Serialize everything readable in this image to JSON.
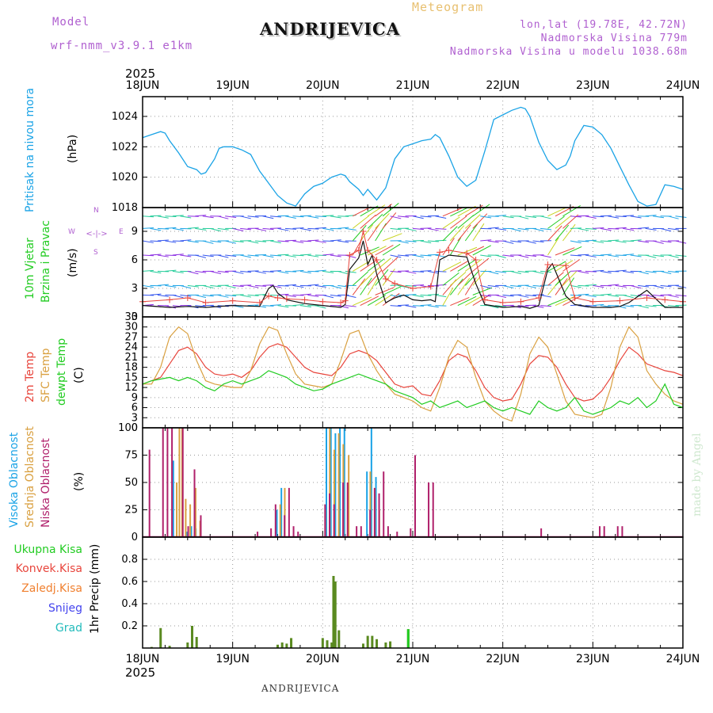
{
  "header": {
    "model_label": "Model",
    "model_name": "wrf-nmm_v3.9.1 e1km",
    "meteogram_label": "Meteogram",
    "station": "ANDRIJEVICA",
    "lonlat": "lon,lat (19.78E, 42.72N)",
    "altitude": "Nadmorska Visina 779m",
    "model_altitude": "Nadmorska Visina u modelu 1038.68m",
    "year_top": "2025",
    "year_bottom": "2025",
    "footer_station": "ANDRIJEVICA",
    "watermark": "made by Angel"
  },
  "colors": {
    "pressure": "#1aa3e6",
    "temp2m": "#e8453c",
    "sfc": "#d9a040",
    "dew": "#22cc22",
    "high_cloud": "#1aa3e6",
    "mid_cloud": "#d9a040",
    "low_cloud": "#b0206b",
    "total_precip": "#5a8a20",
    "wind_mean": "#111111",
    "wind_gust": "#e8453c"
  },
  "chart_data": [
    {
      "type": "line",
      "panel": "pressure",
      "ylabel_main": "Pritisak na nivou mora",
      "ylabel_unit": "(hPa)",
      "ylim": [
        1018,
        1025.3
      ],
      "yticks": [
        1018,
        1020,
        1022,
        1024
      ],
      "x_ticks": [
        "18JUN",
        "19JUN",
        "20JUN",
        "21JUN",
        "22JUN",
        "23JUN",
        "24JUN"
      ],
      "x_days": [
        0,
        6
      ],
      "grid": true,
      "series": [
        {
          "color_key": "pressure",
          "x": [
            0.0,
            0.1,
            0.2,
            0.25,
            0.3,
            0.4,
            0.5,
            0.6,
            0.65,
            0.7,
            0.8,
            0.85,
            0.9,
            1.0,
            1.1,
            1.2,
            1.3,
            1.4,
            1.5,
            1.6,
            1.7,
            1.8,
            1.9,
            2.0,
            2.1,
            2.2,
            2.25,
            2.3,
            2.4,
            2.45,
            2.5,
            2.6,
            2.7,
            2.8,
            2.9,
            3.0,
            3.1,
            3.2,
            3.25,
            3.3,
            3.4,
            3.5,
            3.6,
            3.7,
            3.8,
            3.9,
            4.0,
            4.1,
            4.2,
            4.25,
            4.3,
            4.4,
            4.5,
            4.6,
            4.7,
            4.75,
            4.8,
            4.9,
            5.0,
            5.1,
            5.2,
            5.3,
            5.4,
            5.5,
            5.6,
            5.7,
            5.8,
            5.9,
            6.0
          ],
          "y": [
            1022.6,
            1022.8,
            1023.0,
            1022.9,
            1022.4,
            1021.6,
            1020.7,
            1020.5,
            1020.2,
            1020.3,
            1021.2,
            1021.9,
            1022.0,
            1022.0,
            1021.8,
            1021.5,
            1020.4,
            1019.6,
            1018.8,
            1018.3,
            1018.1,
            1018.9,
            1019.4,
            1019.6,
            1020.0,
            1020.2,
            1020.1,
            1019.7,
            1019.2,
            1018.8,
            1019.2,
            1018.5,
            1019.3,
            1021.2,
            1022.0,
            1022.2,
            1022.4,
            1022.5,
            1022.8,
            1022.6,
            1021.4,
            1020.0,
            1019.4,
            1019.8,
            1021.7,
            1023.8,
            1024.1,
            1024.4,
            1024.6,
            1024.5,
            1024.0,
            1022.3,
            1021.1,
            1020.5,
            1020.8,
            1021.4,
            1022.4,
            1023.4,
            1023.3,
            1022.8,
            1021.9,
            1020.7,
            1019.5,
            1018.4,
            1018.1,
            1018.2,
            1019.5,
            1019.4,
            1019.2
          ]
        }
      ]
    },
    {
      "type": "line",
      "panel": "wind",
      "ylabel_main": "10m Vjetar",
      "ylabel_sub": "Brzina i Pravac",
      "ylabel_unit": "(m/s)",
      "compass_labels": [
        "N",
        "W",
        "E",
        "S"
      ],
      "ylim": [
        0,
        11.5
      ],
      "yticks": [
        0,
        3,
        6,
        9
      ],
      "series": [
        {
          "name": "mean",
          "color_key": "wind_mean",
          "x": [
            0.0,
            0.3,
            0.5,
            0.7,
            1.0,
            1.3,
            1.4,
            1.45,
            1.5,
            1.6,
            1.8,
            2.0,
            2.2,
            2.25,
            2.3,
            2.4,
            2.45,
            2.5,
            2.55,
            2.6,
            2.7,
            2.8,
            2.9,
            3.0,
            3.1,
            3.2,
            3.25,
            3.3,
            3.4,
            3.6,
            3.7,
            3.8,
            4.0,
            4.2,
            4.3,
            4.4,
            4.5,
            4.55,
            4.7,
            4.8,
            5.0,
            5.2,
            5.3,
            5.4,
            5.6,
            5.8,
            6.0
          ],
          "y": [
            1.2,
            1.0,
            1.1,
            1.0,
            1.2,
            1.1,
            3.0,
            3.3,
            2.5,
            1.8,
            1.4,
            1.2,
            1.0,
            1.3,
            5.0,
            6.2,
            8.0,
            5.5,
            6.5,
            4.5,
            1.5,
            2.0,
            2.3,
            1.8,
            1.7,
            1.8,
            1.6,
            6.0,
            6.5,
            6.3,
            3.5,
            1.3,
            1.0,
            1.1,
            0.9,
            1.2,
            5.0,
            5.6,
            2.2,
            1.3,
            1.0,
            1.0,
            1.1,
            1.5,
            2.8,
            1.0,
            1.0
          ]
        },
        {
          "name": "gust",
          "color_key": "wind_gust",
          "x": [
            0.0,
            0.3,
            0.5,
            0.7,
            1.0,
            1.3,
            1.4,
            1.5,
            1.6,
            1.8,
            2.0,
            2.2,
            2.25,
            2.3,
            2.4,
            2.45,
            2.5,
            2.6,
            2.7,
            2.8,
            3.0,
            3.2,
            3.3,
            3.4,
            3.6,
            3.7,
            3.8,
            4.0,
            4.2,
            4.4,
            4.5,
            4.7,
            4.8,
            5.0,
            5.3,
            5.6,
            5.8,
            6.0
          ],
          "y": [
            1.6,
            1.8,
            2.0,
            1.5,
            1.7,
            1.5,
            2.2,
            2.0,
            1.9,
            1.8,
            1.6,
            1.5,
            1.7,
            6.5,
            7.0,
            9.0,
            7.0,
            6.0,
            4.0,
            3.5,
            3.0,
            3.2,
            6.8,
            7.0,
            6.7,
            6.0,
            1.8,
            1.5,
            1.6,
            2.0,
            5.5,
            5.4,
            2.0,
            1.6,
            1.7,
            2.0,
            1.8,
            1.6
          ]
        }
      ]
    },
    {
      "type": "line",
      "panel": "temperature",
      "ylabel_a": "2m Temp",
      "ylabel_b": "SFC Temp",
      "ylabel_c": "dewpt Temp",
      "ylabel_unit": "(C)",
      "ylim": [
        0,
        33
      ],
      "yticks": [
        0,
        3,
        6,
        9,
        12,
        15,
        18,
        21,
        24,
        27,
        30,
        33
      ],
      "series": [
        {
          "name": "2m",
          "color_key": "temp2m",
          "x": [
            0.0,
            0.1,
            0.2,
            0.3,
            0.4,
            0.5,
            0.6,
            0.7,
            0.8,
            0.9,
            1.0,
            1.1,
            1.2,
            1.3,
            1.4,
            1.5,
            1.6,
            1.7,
            1.8,
            1.9,
            2.0,
            2.1,
            2.2,
            2.3,
            2.4,
            2.5,
            2.6,
            2.7,
            2.8,
            2.9,
            3.0,
            3.1,
            3.2,
            3.3,
            3.4,
            3.5,
            3.6,
            3.7,
            3.8,
            3.9,
            4.0,
            4.1,
            4.2,
            4.3,
            4.4,
            4.5,
            4.6,
            4.7,
            4.8,
            4.9,
            5.0,
            5.1,
            5.2,
            5.3,
            5.4,
            5.5,
            5.6,
            5.7,
            5.8,
            5.9,
            6.0
          ],
          "y": [
            13,
            14,
            15,
            19,
            23,
            24,
            22,
            18,
            16,
            15.5,
            16,
            15,
            17,
            21,
            24,
            25,
            24,
            21,
            18,
            16.5,
            16,
            15.5,
            18,
            22,
            23,
            22,
            20,
            16.5,
            13,
            12,
            12.5,
            10,
            9.5,
            14,
            20,
            22,
            21,
            17,
            12,
            9,
            8,
            8.5,
            13,
            19,
            21.5,
            21,
            18,
            13,
            9,
            8,
            8.5,
            11,
            15,
            20,
            24,
            22,
            19,
            18,
            17,
            16.5,
            15.5
          ]
        },
        {
          "name": "sfc",
          "color_key": "sfc",
          "x": [
            0.0,
            0.1,
            0.2,
            0.3,
            0.4,
            0.5,
            0.6,
            0.7,
            0.8,
            0.9,
            1.0,
            1.1,
            1.2,
            1.3,
            1.4,
            1.5,
            1.6,
            1.7,
            1.8,
            1.9,
            2.0,
            2.1,
            2.2,
            2.3,
            2.4,
            2.5,
            2.6,
            2.7,
            2.8,
            2.9,
            3.0,
            3.1,
            3.2,
            3.3,
            3.4,
            3.5,
            3.6,
            3.7,
            3.8,
            3.9,
            4.0,
            4.1,
            4.2,
            4.3,
            4.4,
            4.5,
            4.6,
            4.7,
            4.8,
            4.9,
            5.0,
            5.1,
            5.2,
            5.3,
            5.4,
            5.5,
            5.6,
            5.7,
            5.8,
            5.9,
            6.0
          ],
          "y": [
            13,
            13,
            18,
            27,
            30,
            28,
            20,
            14,
            13,
            12.5,
            12,
            12,
            17,
            25,
            30,
            29,
            22,
            16,
            13,
            12.5,
            12,
            13,
            20,
            28,
            29,
            22,
            17,
            13,
            10,
            9,
            8,
            6,
            5,
            12,
            21,
            26,
            24,
            15,
            8,
            5,
            3,
            2,
            10,
            22,
            27,
            24,
            16,
            8,
            4,
            3.5,
            3,
            4,
            12,
            24,
            30,
            27,
            17,
            13,
            10,
            8,
            7
          ]
        },
        {
          "name": "dewpt",
          "color_key": "dew",
          "x": [
            0.0,
            0.1,
            0.2,
            0.3,
            0.4,
            0.5,
            0.6,
            0.7,
            0.8,
            0.9,
            1.0,
            1.1,
            1.2,
            1.3,
            1.4,
            1.5,
            1.6,
            1.7,
            1.8,
            1.9,
            2.0,
            2.1,
            2.2,
            2.3,
            2.4,
            2.5,
            2.6,
            2.7,
            2.8,
            2.9,
            3.0,
            3.1,
            3.2,
            3.3,
            3.4,
            3.5,
            3.6,
            3.7,
            3.8,
            3.9,
            4.0,
            4.1,
            4.2,
            4.3,
            4.4,
            4.5,
            4.6,
            4.7,
            4.8,
            4.9,
            5.0,
            5.1,
            5.2,
            5.3,
            5.4,
            5.5,
            5.6,
            5.7,
            5.8,
            5.9,
            6.0
          ],
          "y": [
            13,
            14,
            14.5,
            15,
            14,
            15,
            14,
            12,
            11,
            13,
            14,
            13,
            14,
            15,
            17,
            16,
            15,
            13,
            12,
            11,
            11.5,
            13,
            14,
            15,
            16,
            15,
            14,
            13,
            11,
            10,
            9,
            7,
            8,
            6,
            7,
            8,
            6,
            7,
            8,
            6,
            5,
            6,
            5,
            4,
            8,
            6,
            5,
            6,
            9,
            5,
            4,
            5,
            6,
            8,
            7,
            9,
            6,
            8,
            13,
            7,
            6
          ]
        }
      ]
    },
    {
      "type": "bar",
      "panel": "clouds",
      "ylabel_a": "Visoka Oblacnost",
      "ylabel_b": "Srednja Oblacnost",
      "ylabel_c": "Niska Oblacnost",
      "ylabel_unit": "(%)",
      "ylim": [
        0,
        100
      ],
      "yticks": [
        0,
        25,
        50,
        75,
        100
      ],
      "series": [
        {
          "name": "high",
          "color_key": "high_cloud",
          "x": [
            0.35,
            0.45,
            0.5,
            0.55,
            0.6,
            1.5,
            1.55,
            2.05,
            2.1,
            2.15,
            2.2,
            2.25,
            2.5,
            2.55,
            2.6
          ],
          "y": [
            70,
            100,
            5,
            10,
            8,
            25,
            45,
            100,
            100,
            95,
            100,
            100,
            60,
            100,
            55
          ]
        },
        {
          "name": "mid",
          "color_key": "mid_cloud",
          "x": [
            0.37,
            0.4,
            0.43,
            0.47,
            0.52,
            0.58,
            0.63,
            1.52,
            1.57,
            2.02,
            2.07,
            2.12,
            2.17,
            2.22,
            2.28,
            2.52,
            2.57,
            2.62
          ],
          "y": [
            50,
            100,
            100,
            35,
            30,
            45,
            15,
            30,
            45,
            25,
            100,
            80,
            95,
            85,
            75,
            60,
            45,
            25
          ]
        },
        {
          "name": "low",
          "color_key": "low_cloud",
          "x": [
            0.05,
            0.2,
            0.25,
            0.3,
            0.42,
            0.48,
            0.55,
            0.62,
            1.25,
            1.4,
            1.45,
            1.55,
            1.6,
            1.65,
            1.7,
            2.0,
            2.05,
            2.1,
            2.2,
            2.25,
            2.35,
            2.4,
            2.5,
            2.55,
            2.6,
            2.65,
            2.7,
            2.8,
            2.95,
            3.0,
            3.15,
            3.2,
            4.4,
            5.05,
            5.1,
            5.25,
            5.3
          ],
          "y": [
            80,
            100,
            100,
            100,
            100,
            10,
            62,
            20,
            5,
            8,
            30,
            20,
            45,
            10,
            5,
            30,
            40,
            30,
            50,
            50,
            10,
            10,
            25,
            45,
            40,
            60,
            10,
            5,
            8,
            75,
            50,
            50,
            8,
            10,
            10,
            10,
            10
          ]
        }
      ]
    },
    {
      "type": "bar",
      "panel": "precip",
      "legend": [
        "Ukupna Kisa",
        "Konvek.Kisa",
        "Zaledj.Kisa",
        "Snijeg",
        "Grad"
      ],
      "legend_colors": [
        "#22cc22",
        "#e8453c",
        "#f08030",
        "#4444ee",
        "#22bbbb"
      ],
      "ylabel_unit": "1hr Precip (mm)",
      "ylim": [
        0,
        1.0
      ],
      "yticks": [
        0.2,
        0.4,
        0.6,
        0.8
      ],
      "series": [
        {
          "name": "total",
          "color_key": "total_precip",
          "x": [
            0.1,
            0.2,
            0.3,
            0.5,
            0.55,
            0.6,
            1.5,
            1.55,
            1.6,
            1.65,
            2.0,
            2.05,
            2.1,
            2.12,
            2.14,
            2.18,
            2.45,
            2.5,
            2.55,
            2.6,
            2.7,
            2.75,
            2.95
          ],
          "y": [
            0.01,
            0.18,
            0.02,
            0.05,
            0.2,
            0.1,
            0.03,
            0.05,
            0.04,
            0.09,
            0.09,
            0.07,
            0.05,
            0.65,
            0.6,
            0.16,
            0.04,
            0.11,
            0.11,
            0.08,
            0.05,
            0.06,
            0.17
          ]
        }
      ]
    }
  ]
}
